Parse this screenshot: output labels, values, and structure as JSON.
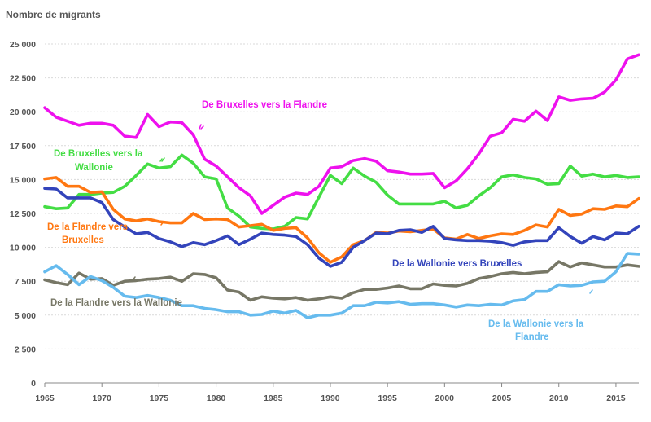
{
  "chart_data": {
    "type": "line",
    "title": "",
    "ylabel": "Nombre de migrants",
    "xlabel": "",
    "ylim": [
      0,
      25000
    ],
    "y_ticks": [
      0,
      2500,
      5000,
      7500,
      10000,
      12500,
      15000,
      17500,
      20000,
      22500,
      25000
    ],
    "y_tick_labels": [
      "0",
      "2 500",
      "5 000",
      "7 500",
      "10 000",
      "12 500",
      "15 000",
      "17 500",
      "20 000",
      "22 500",
      "25 000"
    ],
    "x_ticks": [
      1965,
      1970,
      1975,
      1980,
      1985,
      1990,
      1995,
      2000,
      2005,
      2010,
      2015
    ],
    "x_tick_labels": [
      "1965",
      "1970",
      "1975",
      "1980",
      "1985",
      "1990",
      "1995",
      "2000",
      "2005",
      "2010",
      "2015"
    ],
    "xlim": [
      1965,
      2017
    ],
    "grid": "horizontal",
    "x": [
      1965,
      1966,
      1967,
      1968,
      1969,
      1970,
      1971,
      1972,
      1973,
      1974,
      1975,
      1976,
      1977,
      1978,
      1979,
      1980,
      1981,
      1982,
      1983,
      1984,
      1985,
      1986,
      1987,
      1988,
      1989,
      1990,
      1991,
      1992,
      1993,
      1994,
      1995,
      1996,
      1997,
      1998,
      1999,
      2000,
      2001,
      2002,
      2003,
      2004,
      2005,
      2006,
      2007,
      2008,
      2009,
      2010,
      2011,
      2012,
      2013,
      2014,
      2015,
      2016,
      2017
    ],
    "series": [
      {
        "name": "De Bruxelles vers la Flandre",
        "color": "#ee11ee",
        "values": [
          20300,
          19600,
          19300,
          19000,
          19150,
          19150,
          19000,
          18200,
          18100,
          19800,
          18900,
          19250,
          19200,
          18300,
          16500,
          16000,
          15200,
          14400,
          13800,
          12500,
          13100,
          13700,
          14000,
          13900,
          14500,
          15850,
          15950,
          16400,
          16550,
          16350,
          15650,
          15550,
          15400,
          15400,
          15450,
          14400,
          14900,
          15800,
          16900,
          18200,
          18450,
          19450,
          19300,
          20050,
          19350,
          21100,
          20850,
          20950,
          21000,
          21450,
          22350,
          23900,
          24200
        ]
      },
      {
        "name": "De Bruxelles vers la Wallonie",
        "color": "#44dd44",
        "values": [
          13000,
          12850,
          12900,
          13900,
          13900,
          14000,
          14050,
          14500,
          15300,
          16150,
          15850,
          15950,
          16800,
          16200,
          15200,
          15050,
          12900,
          12300,
          11500,
          11400,
          11350,
          11550,
          12200,
          12100,
          13700,
          15300,
          14700,
          15850,
          15250,
          14800,
          13850,
          13200,
          13200,
          13200,
          13200,
          13400,
          12900,
          13100,
          13800,
          14400,
          15200,
          15350,
          15150,
          15050,
          14650,
          14700,
          16000,
          15250,
          15400,
          15200,
          15300,
          15150,
          15200
        ]
      },
      {
        "name": "De la Flandre vers Bruxelles",
        "color": "#ff7711",
        "values": [
          15050,
          15150,
          14500,
          14500,
          14050,
          14100,
          12800,
          12100,
          11950,
          12100,
          11900,
          11800,
          11800,
          12500,
          12050,
          12100,
          12050,
          11500,
          11600,
          11700,
          11250,
          11400,
          11450,
          10700,
          9600,
          8900,
          9300,
          10200,
          10500,
          11100,
          11050,
          11200,
          11150,
          11250,
          11350,
          10700,
          10600,
          10950,
          10650,
          10850,
          11000,
          10950,
          11250,
          11650,
          11500,
          12800,
          12350,
          12450,
          12850,
          12800,
          13050,
          13000,
          13600
        ]
      },
      {
        "name": "De la Wallonie vers Bruxelles",
        "color": "#3344bb",
        "values": [
          14350,
          14300,
          13650,
          13650,
          13650,
          13300,
          12050,
          11500,
          11000,
          11100,
          10650,
          10400,
          10050,
          10350,
          10200,
          10500,
          10850,
          10200,
          10600,
          11050,
          10950,
          10900,
          10800,
          10200,
          9200,
          8600,
          8900,
          10000,
          10500,
          11050,
          11000,
          11250,
          11300,
          11100,
          11550,
          10650,
          10550,
          10500,
          10500,
          10450,
          10350,
          10150,
          10400,
          10500,
          10500,
          11450,
          10800,
          10300,
          10800,
          10550,
          11050,
          11000,
          11550
        ]
      },
      {
        "name": "De la Flandre vers la Wallonie",
        "color": "#777766",
        "values": [
          7600,
          7400,
          7250,
          8100,
          7650,
          7700,
          7200,
          7500,
          7550,
          7650,
          7700,
          7800,
          7500,
          8050,
          8000,
          7750,
          6850,
          6700,
          6100,
          6350,
          6250,
          6200,
          6300,
          6100,
          6200,
          6350,
          6250,
          6650,
          6900,
          6900,
          7000,
          7150,
          6950,
          6950,
          7300,
          7200,
          7150,
          7350,
          7700,
          7850,
          8050,
          8150,
          8050,
          8150,
          8200,
          8950,
          8550,
          8850,
          8700,
          8550,
          8550,
          8700,
          8600
        ]
      },
      {
        "name": "De la Wallonie vers la Flandre",
        "color": "#66bbee",
        "values": [
          8200,
          8650,
          8000,
          7250,
          7850,
          7550,
          7050,
          6400,
          6300,
          6450,
          6300,
          6100,
          5700,
          5700,
          5500,
          5400,
          5250,
          5250,
          5000,
          5050,
          5300,
          5150,
          5350,
          4800,
          5000,
          5000,
          5150,
          5700,
          5700,
          5950,
          5900,
          6000,
          5800,
          5850,
          5850,
          5750,
          5600,
          5750,
          5700,
          5800,
          5750,
          6050,
          6150,
          6750,
          6750,
          7250,
          7150,
          7200,
          7450,
          7500,
          8200,
          9550,
          9500
        ]
      }
    ]
  }
}
